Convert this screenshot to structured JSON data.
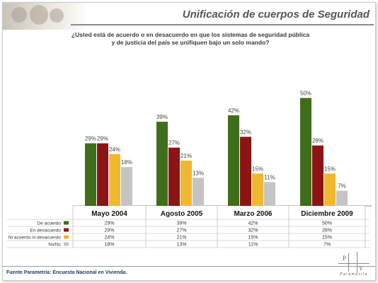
{
  "page": {
    "title": "Unificación de cuerpos de Seguridad",
    "question_line1": "¿Usted está de acuerdo o en desacuerdo en que los sistemas de seguridad pública",
    "question_line2": "y de justicia del país se unifiquen bajo un solo mando?",
    "source": "Fuente Parametría: Encuesta Nacional en Vivienda.",
    "logo_text": "Parametría"
  },
  "colors": {
    "de_acuerdo": "#3f6e1a",
    "en_desacuerdo": "#8c1414",
    "ni_acuerdo": "#f2b731",
    "ns_nc": "#c4c4c4"
  },
  "chart_data": {
    "type": "bar",
    "title": "¿Usted está de acuerdo o en desacuerdo en que los sistemas de seguridad pública y de justicia del país se unifiquen bajo un solo mando?",
    "categories": [
      "Mayo 2004",
      "Agosto 2005",
      "Marzo 2006",
      "Diciembre 2009"
    ],
    "series": [
      {
        "name": "De acuerdo",
        "values": [
          29,
          39,
          42,
          50
        ],
        "color": "#3f6e1a"
      },
      {
        "name": "En desacuerdo",
        "values": [
          29,
          27,
          32,
          28
        ],
        "color": "#8c1414"
      },
      {
        "name": "Ni acuerdo ni desacuerdo",
        "values": [
          24,
          21,
          15,
          15
        ],
        "color": "#f2b731"
      },
      {
        "name": "Ns/Nc",
        "values": [
          18,
          13,
          11,
          7
        ],
        "color": "#c4c4c4"
      }
    ],
    "value_suffix": "%",
    "ylim": [
      0,
      55
    ],
    "grid": false,
    "legend": "table-below"
  }
}
